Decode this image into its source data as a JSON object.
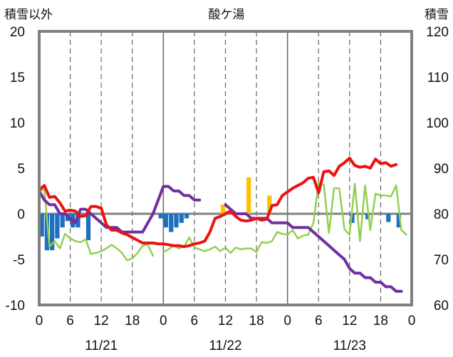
{
  "chart_data": {
    "type": "line",
    "title": "酸ケ湯",
    "left_axis_label": "積雪以外",
    "right_axis_label": "積雪",
    "left_ylim": [
      -10,
      20
    ],
    "left_yticks": [
      "20",
      "15",
      "10",
      "5",
      "0",
      "-5",
      "-10"
    ],
    "right_ylim": [
      60,
      120
    ],
    "right_yticks": [
      "120",
      "110",
      "100",
      "90",
      "80",
      "70",
      "60"
    ],
    "xlim": [
      0,
      72
    ],
    "x_unit": "hours from 11/21 00:00",
    "x_tick_labels": [
      "0",
      "6",
      "12",
      "18",
      "0",
      "6",
      "12",
      "18",
      "0",
      "6",
      "12",
      "18",
      "0"
    ],
    "date_labels": [
      "11/21",
      "11/22",
      "11/23"
    ],
    "grid": "dashed vertical every 6h; solid at day boundaries; zero line",
    "colors": {
      "temperature": "#ee1111",
      "snow_depth": "#7030a0",
      "wind": "#92d050",
      "precip_negative": "#1f6fc0",
      "precip_positive": "#ffc000",
      "frame": "#808080",
      "zero_line": "#808080"
    },
    "series": [
      {
        "axis": "left",
        "color": "#ee1111",
        "x": [
          0,
          1,
          2,
          3,
          4,
          5,
          6,
          7,
          8,
          9,
          10,
          11,
          12,
          13,
          14,
          15,
          16,
          17,
          18,
          19,
          20,
          21,
          22,
          23,
          24,
          25,
          26,
          27,
          28,
          29,
          30,
          31,
          32,
          33,
          34,
          35,
          36,
          37,
          38,
          39,
          40,
          41,
          42,
          43,
          44,
          45,
          46,
          47,
          48,
          49,
          50,
          51,
          52,
          53,
          54,
          55,
          56,
          57,
          58,
          59,
          60,
          61,
          62,
          63,
          64,
          65,
          66,
          67,
          68,
          69,
          70,
          71
        ],
        "values": [
          2.6,
          3.1,
          1.8,
          1.9,
          1.2,
          0.3,
          0.4,
          0.3,
          -0.3,
          -0.2,
          0.8,
          0.8,
          0.6,
          -1.2,
          -1.8,
          -1.8,
          -2.1,
          -2.3,
          -2.6,
          -2.9,
          -3.2,
          -3.2,
          -3.2,
          -3.3,
          -3.3,
          -3.4,
          -3.5,
          -3.5,
          -3.6,
          -3.5,
          -3.3,
          -3.2,
          -3.0,
          -2.0,
          -0.5,
          -0.3,
          0.0,
          0.3,
          -0.3,
          -0.7,
          -0.8,
          -0.7,
          -0.5,
          -0.7,
          -0.6,
          0.9,
          1.0,
          2.0,
          2.4,
          2.8,
          3.1,
          3.4,
          3.9,
          4.0,
          2.3,
          4.6,
          4.7,
          4.2,
          5.2,
          5.6,
          6.1,
          5.3,
          5.1,
          5.2,
          5.0,
          6.0,
          5.5,
          5.6,
          5.2,
          5.4,
          null,
          null
        ]
      },
      {
        "axis": "right",
        "color": "#7030a0",
        "x": [
          0,
          1,
          2,
          3,
          4,
          5,
          6,
          7,
          8,
          9,
          10,
          11,
          12,
          13,
          14,
          15,
          16,
          17,
          18,
          19,
          20,
          21,
          22,
          23,
          24,
          25,
          26,
          27,
          28,
          29,
          30,
          31,
          32,
          33,
          34,
          35,
          36,
          37,
          38,
          39,
          40,
          41,
          42,
          43,
          44,
          45,
          46,
          47,
          48,
          49,
          50,
          51,
          52,
          53,
          54,
          55,
          56,
          57,
          58,
          59,
          60,
          61,
          62,
          63,
          64,
          65,
          66,
          67,
          68,
          69,
          70,
          71
        ],
        "values": [
          85,
          83,
          82,
          82,
          80,
          80,
          79,
          78,
          81,
          81,
          80,
          79,
          78,
          77,
          77,
          77,
          76,
          76,
          76,
          76,
          76,
          78,
          80,
          83,
          86,
          86,
          85,
          85,
          84,
          84,
          83,
          83,
          null,
          null,
          null,
          null,
          82,
          81,
          80,
          80,
          80,
          79,
          79,
          79,
          79,
          78,
          78,
          78,
          78,
          77,
          77,
          77,
          77,
          76,
          75,
          74,
          73,
          72,
          71,
          70,
          68,
          67,
          67,
          66,
          66,
          65,
          65,
          64,
          64,
          63,
          63,
          null
        ]
      },
      {
        "axis": "left",
        "color": "#92d050",
        "x": [
          0,
          1,
          2,
          3,
          4,
          5,
          6,
          7,
          8,
          9,
          10,
          11,
          12,
          13,
          14,
          15,
          16,
          17,
          18,
          19,
          20,
          21,
          22,
          23,
          24,
          25,
          26,
          27,
          28,
          29,
          30,
          31,
          32,
          33,
          34,
          35,
          36,
          37,
          38,
          39,
          40,
          41,
          42,
          43,
          44,
          45,
          46,
          47,
          48,
          49,
          50,
          51,
          52,
          53,
          54,
          55,
          56,
          57,
          58,
          59,
          60,
          61,
          62,
          63,
          64,
          65,
          66,
          67,
          68,
          69,
          70,
          71
        ],
        "values": [
          2.5,
          2.7,
          -3.6,
          -3.0,
          -3.8,
          -2.2,
          -2.7,
          -3.0,
          -3.1,
          -2.8,
          -4.4,
          -4.3,
          -4.1,
          -3.8,
          -3.4,
          -3.8,
          -4.3,
          -5.1,
          -4.9,
          -4.3,
          -3.5,
          -3.4,
          -4.6,
          null,
          -4.2,
          -3.9,
          -3.5,
          -3.8,
          -3.6,
          -2.6,
          -3.7,
          -3.9,
          -4.1,
          -3.9,
          -3.6,
          -4.1,
          -3.7,
          -4.3,
          -3.7,
          -3.9,
          -3.8,
          -3.8,
          -4.2,
          -3.1,
          -3.2,
          -3.0,
          -2.0,
          -2.2,
          -2.3,
          -1.8,
          -2.7,
          -2.4,
          -2.3,
          -1.0,
          3.4,
          3.2,
          -2.1,
          2.8,
          2.8,
          -1.7,
          -2.3,
          3.3,
          -3.0,
          3.1,
          -1.8,
          2.2,
          2.0,
          2.0,
          1.9,
          3.1,
          -1.8,
          -2.3
        ]
      }
    ],
    "bars": {
      "axis": "left",
      "x": [
        0,
        1,
        2,
        3,
        4,
        5,
        6,
        7,
        8,
        9,
        10,
        11,
        12,
        13,
        14,
        15,
        16,
        17,
        18,
        19,
        20,
        21,
        22,
        23,
        24,
        25,
        26,
        27,
        28,
        29,
        30,
        31,
        32,
        33,
        34,
        35,
        36,
        37,
        38,
        39,
        40,
        41,
        42,
        43,
        44,
        45,
        46,
        47,
        48,
        49,
        50,
        51,
        52,
        53,
        54,
        55,
        56,
        57,
        58,
        59,
        60,
        61,
        62,
        63,
        64,
        65,
        66,
        67,
        68,
        69,
        70,
        71
      ],
      "values": [
        -2.5,
        -4.0,
        -4.0,
        -2.7,
        -1.5,
        -0.8,
        -1.5,
        -1.5,
        0,
        -2.9,
        0,
        0,
        0,
        0,
        0,
        0,
        0,
        0,
        0,
        0,
        0,
        0,
        0,
        -0.5,
        -1.5,
        -2.0,
        -1.5,
        -1.0,
        -0.5,
        0,
        0,
        0,
        0,
        0,
        0,
        1.0,
        0,
        0,
        0,
        0,
        4.0,
        0,
        0,
        0,
        2.0,
        0,
        0,
        0,
        0,
        0,
        0,
        0,
        0,
        0,
        0,
        0,
        0,
        0,
        0,
        0,
        -1.0,
        0,
        0,
        -0.6,
        0,
        0,
        0,
        -0.9,
        0,
        -1.5,
        0,
        0
      ]
    }
  }
}
